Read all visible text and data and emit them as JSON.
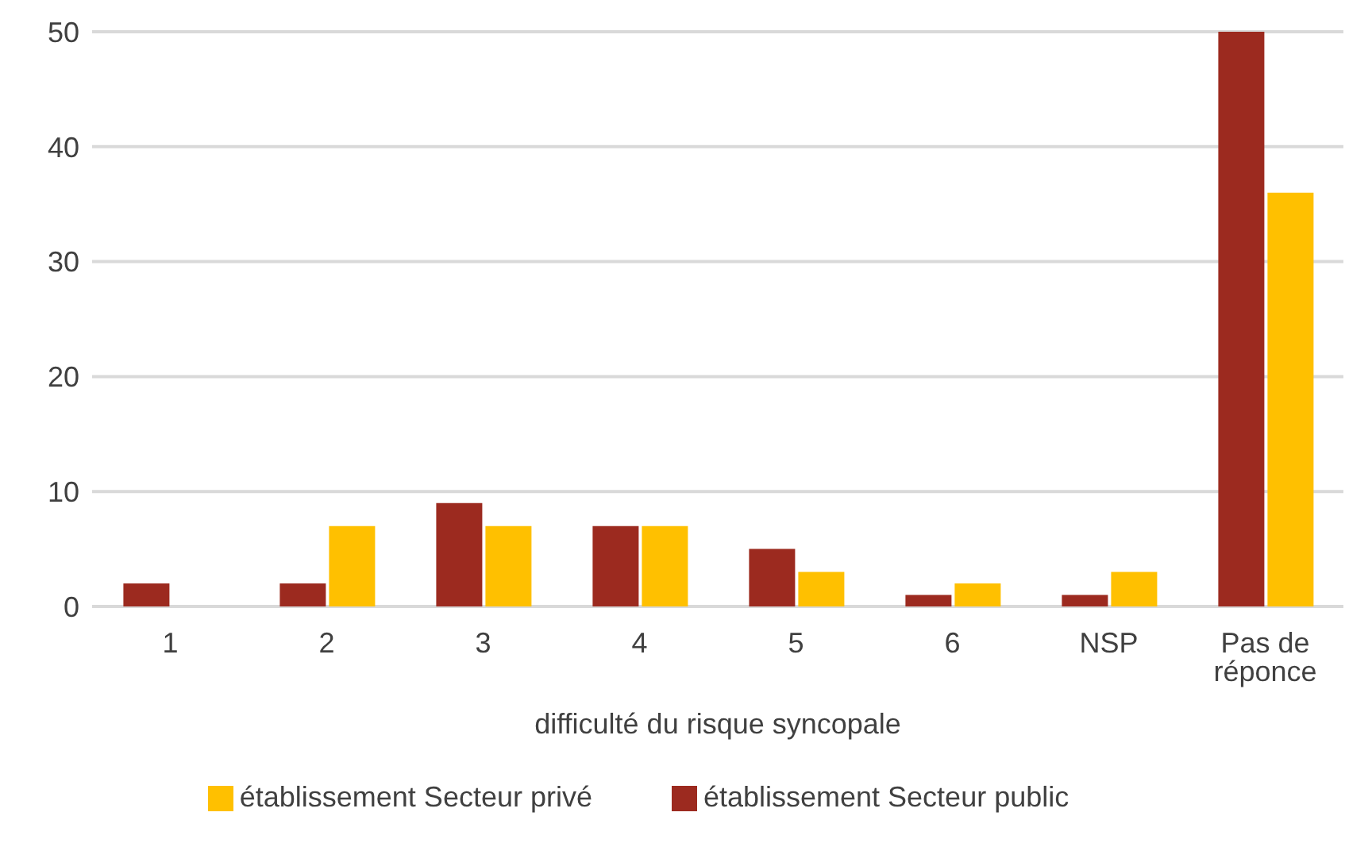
{
  "chart_data": {
    "type": "bar",
    "xlabel": "difficulté du risque syncopale",
    "categories": [
      "1",
      "2",
      "3",
      "4",
      "5",
      "6",
      "NSP",
      "Pas de réponce"
    ],
    "series": [
      {
        "name": "établissement Secteur public",
        "color": "#9c2a1f",
        "values": [
          2,
          2,
          9,
          7,
          5,
          1,
          1,
          50
        ]
      },
      {
        "name": "établissement Secteur privé",
        "color": "#ffc000",
        "values": [
          0,
          7,
          7,
          7,
          3,
          2,
          3,
          36
        ]
      }
    ],
    "ylim": [
      0,
      50
    ],
    "yticks": [
      0,
      10,
      20,
      30,
      40,
      50
    ],
    "grid": "y",
    "legend": "bottom"
  }
}
